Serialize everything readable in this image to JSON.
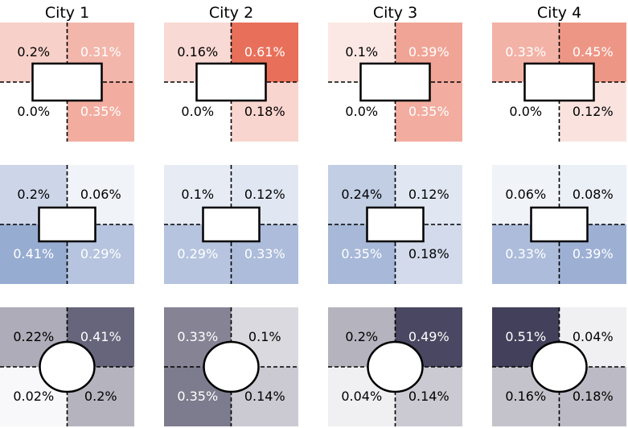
{
  "chart_data": {
    "type": "heatmap",
    "columns": [
      "City 1",
      "City 2",
      "City 3",
      "City 4"
    ],
    "quadrant_order": [
      "top-left",
      "top-right",
      "bottom-left",
      "bottom-right"
    ],
    "rows": [
      {
        "palette": "red",
        "center_shape": "rectangle",
        "cells": [
          {
            "values": [
              0.2,
              0.31,
              0.0,
              0.35
            ],
            "labels": [
              "0.2%",
              "0.31%",
              "0.0%",
              "0.35%"
            ]
          },
          {
            "values": [
              0.16,
              0.61,
              0.0,
              0.18
            ],
            "labels": [
              "0.16%",
              "0.61%",
              "0.0%",
              "0.18%"
            ]
          },
          {
            "values": [
              0.1,
              0.39,
              0.0,
              0.35
            ],
            "labels": [
              "0.1%",
              "0.39%",
              "0.0%",
              "0.35%"
            ]
          },
          {
            "values": [
              0.33,
              0.45,
              0.0,
              0.12
            ],
            "labels": [
              "0.33%",
              "0.45%",
              "0.0%",
              "0.12%"
            ]
          }
        ]
      },
      {
        "palette": "blue",
        "center_shape": "rectangle",
        "cells": [
          {
            "values": [
              0.2,
              0.06,
              0.41,
              0.29
            ],
            "labels": [
              "0.2%",
              "0.06%",
              "0.41%",
              "0.29%"
            ]
          },
          {
            "values": [
              0.1,
              0.12,
              0.29,
              0.33
            ],
            "labels": [
              "0.1%",
              "0.12%",
              "0.29%",
              "0.33%"
            ]
          },
          {
            "values": [
              0.24,
              0.12,
              0.35,
              0.18
            ],
            "labels": [
              "0.24%",
              "0.12%",
              "0.35%",
              "0.18%"
            ]
          },
          {
            "values": [
              0.06,
              0.08,
              0.33,
              0.39
            ],
            "labels": [
              "0.06%",
              "0.08%",
              "0.33%",
              "0.39%"
            ]
          }
        ]
      },
      {
        "palette": "gray",
        "center_shape": "ellipse",
        "cells": [
          {
            "values": [
              0.22,
              0.41,
              0.02,
              0.2
            ],
            "labels": [
              "0.22%",
              "0.41%",
              "0.02%",
              "0.2%"
            ]
          },
          {
            "values": [
              0.33,
              0.1,
              0.35,
              0.14
            ],
            "labels": [
              "0.33%",
              "0.1%",
              "0.35%",
              "0.14%"
            ]
          },
          {
            "values": [
              0.2,
              0.49,
              0.04,
              0.14
            ],
            "labels": [
              "0.2%",
              "0.49%",
              "0.04%",
              "0.14%"
            ]
          },
          {
            "values": [
              0.51,
              0.04,
              0.16,
              0.18
            ],
            "labels": [
              "0.51%",
              "0.04%",
              "0.16%",
              "0.18%"
            ]
          }
        ]
      }
    ],
    "grid": false,
    "legend": "none"
  },
  "colors": {
    "red_max": "#e8705a",
    "blue_max": "#6583bb",
    "gray_max": "#1d1a3a",
    "background": "#ffffff",
    "divider": "#000000"
  }
}
